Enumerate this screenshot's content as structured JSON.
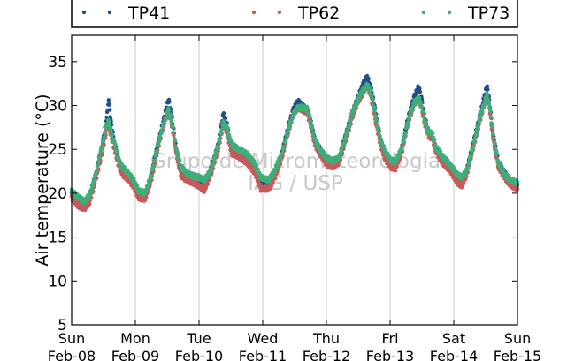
{
  "chart_data": {
    "type": "scatter",
    "title": "",
    "xlabel": "",
    "ylabel": "Air temperature (°C)",
    "ylim": [
      5,
      38
    ],
    "xlim_days": [
      "Feb-08",
      "Feb-15"
    ],
    "yticks": [
      "5",
      "10",
      "15",
      "20",
      "25",
      "30",
      "35"
    ],
    "xticks": [
      {
        "day": "Sun",
        "date": "Feb-08"
      },
      {
        "day": "Mon",
        "date": "Feb-09"
      },
      {
        "day": "Tue",
        "date": "Feb-10"
      },
      {
        "day": "Wed",
        "date": "Feb-11"
      },
      {
        "day": "Thu",
        "date": "Feb-12"
      },
      {
        "day": "Fri",
        "date": "Feb-13"
      },
      {
        "day": "Sat",
        "date": "Feb-14"
      },
      {
        "day": "Sun",
        "date": "Feb-15"
      }
    ],
    "grid": "vertical",
    "legend_placement": "top",
    "watermark": [
      "Grupo de Micrometeorologia",
      "IAG / USP"
    ],
    "series": [
      {
        "name": "TP41",
        "color": "#1f4e8c",
        "points": [
          [
            0.0,
            20.0
          ],
          [
            0.1,
            19.2
          ],
          [
            0.2,
            18.6
          ],
          [
            0.28,
            19.5
          ],
          [
            0.38,
            22.0
          ],
          [
            0.48,
            25.5
          ],
          [
            0.55,
            28.5
          ],
          [
            0.58,
            30.8
          ],
          [
            0.62,
            28.0
          ],
          [
            0.68,
            25.5
          ],
          [
            0.75,
            23.5
          ],
          [
            0.82,
            22.5
          ],
          [
            0.9,
            22.0
          ],
          [
            0.97,
            21.0
          ],
          [
            1.05,
            20.0
          ],
          [
            1.15,
            19.5
          ],
          [
            1.25,
            22.0
          ],
          [
            1.35,
            25.5
          ],
          [
            1.45,
            28.5
          ],
          [
            1.52,
            30.8
          ],
          [
            1.58,
            28.5
          ],
          [
            1.64,
            25.0
          ],
          [
            1.72,
            22.5
          ],
          [
            1.8,
            22.0
          ],
          [
            1.9,
            21.8
          ],
          [
            2.0,
            21.5
          ],
          [
            2.08,
            21.0
          ],
          [
            2.18,
            22.5
          ],
          [
            2.3,
            25.5
          ],
          [
            2.38,
            29.0
          ],
          [
            2.44,
            28.0
          ],
          [
            2.48,
            26.0
          ],
          [
            2.52,
            25.0
          ],
          [
            2.62,
            24.8
          ],
          [
            2.75,
            24.2
          ],
          [
            2.88,
            23.0
          ],
          [
            2.97,
            21.2
          ],
          [
            3.1,
            21.0
          ],
          [
            3.2,
            22.5
          ],
          [
            3.3,
            24.5
          ],
          [
            3.4,
            27.5
          ],
          [
            3.48,
            29.5
          ],
          [
            3.55,
            30.5
          ],
          [
            3.62,
            30.0
          ],
          [
            3.7,
            29.5
          ],
          [
            3.76,
            28.0
          ],
          [
            3.82,
            26.0
          ],
          [
            3.9,
            25.0
          ],
          [
            4.0,
            24.0
          ],
          [
            4.1,
            23.5
          ],
          [
            4.2,
            24.0
          ],
          [
            4.3,
            26.5
          ],
          [
            4.4,
            29.0
          ],
          [
            4.5,
            31.0
          ],
          [
            4.58,
            32.5
          ],
          [
            4.64,
            33.3
          ],
          [
            4.7,
            32.0
          ],
          [
            4.78,
            29.0
          ],
          [
            4.85,
            26.0
          ],
          [
            4.92,
            24.5
          ],
          [
            5.0,
            23.5
          ],
          [
            5.08,
            23.2
          ],
          [
            5.18,
            25.0
          ],
          [
            5.28,
            28.5
          ],
          [
            5.38,
            31.0
          ],
          [
            5.45,
            32.2
          ],
          [
            5.5,
            30.5
          ],
          [
            5.55,
            28.5
          ],
          [
            5.6,
            27.0
          ],
          [
            5.66,
            26.5
          ],
          [
            5.72,
            25.0
          ],
          [
            5.82,
            24.0
          ],
          [
            5.95,
            23.0
          ],
          [
            6.05,
            22.0
          ],
          [
            6.12,
            21.2
          ],
          [
            6.2,
            22.5
          ],
          [
            6.3,
            25.5
          ],
          [
            6.4,
            28.5
          ],
          [
            6.48,
            31.0
          ],
          [
            6.52,
            32.3
          ],
          [
            6.56,
            30.5
          ],
          [
            6.62,
            26.5
          ],
          [
            6.7,
            23.5
          ],
          [
            6.78,
            22.5
          ],
          [
            6.88,
            21.5
          ],
          [
            7.0,
            21.0
          ]
        ]
      },
      {
        "name": "TP62",
        "color": "#c8595a",
        "points": [
          [
            0.0,
            19.5
          ],
          [
            0.1,
            18.6
          ],
          [
            0.2,
            18.2
          ],
          [
            0.28,
            19.0
          ],
          [
            0.38,
            21.5
          ],
          [
            0.48,
            24.8
          ],
          [
            0.55,
            27.3
          ],
          [
            0.58,
            27.8
          ],
          [
            0.62,
            26.5
          ],
          [
            0.68,
            24.8
          ],
          [
            0.75,
            22.8
          ],
          [
            0.82,
            22.0
          ],
          [
            0.9,
            21.5
          ],
          [
            0.97,
            20.8
          ],
          [
            1.05,
            19.5
          ],
          [
            1.15,
            19.3
          ],
          [
            1.25,
            21.5
          ],
          [
            1.35,
            25.0
          ],
          [
            1.45,
            28.0
          ],
          [
            1.52,
            29.5
          ],
          [
            1.58,
            27.5
          ],
          [
            1.64,
            24.5
          ],
          [
            1.72,
            22.0
          ],
          [
            1.8,
            21.5
          ],
          [
            1.9,
            21.2
          ],
          [
            2.0,
            20.8
          ],
          [
            2.08,
            20.3
          ],
          [
            2.18,
            22.0
          ],
          [
            2.3,
            25.0
          ],
          [
            2.38,
            27.8
          ],
          [
            2.44,
            27.0
          ],
          [
            2.48,
            25.5
          ],
          [
            2.52,
            24.5
          ],
          [
            2.62,
            24.2
          ],
          [
            2.75,
            23.5
          ],
          [
            2.88,
            22.3
          ],
          [
            2.97,
            20.5
          ],
          [
            3.1,
            20.5
          ],
          [
            3.2,
            22.0
          ],
          [
            3.3,
            24.0
          ],
          [
            3.4,
            27.0
          ],
          [
            3.48,
            29.0
          ],
          [
            3.55,
            29.8
          ],
          [
            3.62,
            29.5
          ],
          [
            3.7,
            29.2
          ],
          [
            3.76,
            27.5
          ],
          [
            3.82,
            25.5
          ],
          [
            3.9,
            24.5
          ],
          [
            4.0,
            23.3
          ],
          [
            4.1,
            23.0
          ],
          [
            4.2,
            23.5
          ],
          [
            4.3,
            26.0
          ],
          [
            4.4,
            28.5
          ],
          [
            4.5,
            30.5
          ],
          [
            4.58,
            31.5
          ],
          [
            4.64,
            32.3
          ],
          [
            4.7,
            31.0
          ],
          [
            4.78,
            28.0
          ],
          [
            4.85,
            25.5
          ],
          [
            4.92,
            24.0
          ],
          [
            5.0,
            23.0
          ],
          [
            5.08,
            22.8
          ],
          [
            5.18,
            24.5
          ],
          [
            5.28,
            28.0
          ],
          [
            5.38,
            30.2
          ],
          [
            5.45,
            30.8
          ],
          [
            5.5,
            29.5
          ],
          [
            5.55,
            27.8
          ],
          [
            5.6,
            26.5
          ],
          [
            5.66,
            26.3
          ],
          [
            5.72,
            24.8
          ],
          [
            5.82,
            23.5
          ],
          [
            5.95,
            22.5
          ],
          [
            6.05,
            21.3
          ],
          [
            6.12,
            20.8
          ],
          [
            6.2,
            22.0
          ],
          [
            6.3,
            25.0
          ],
          [
            6.4,
            28.0
          ],
          [
            6.48,
            30.2
          ],
          [
            6.52,
            31.2
          ],
          [
            6.56,
            29.8
          ],
          [
            6.62,
            26.0
          ],
          [
            6.7,
            23.0
          ],
          [
            6.78,
            22.0
          ],
          [
            6.88,
            21.0
          ],
          [
            7.0,
            20.5
          ]
        ]
      },
      {
        "name": "TP73",
        "color": "#3dae7a",
        "points": [
          [
            0.0,
            20.2
          ],
          [
            0.1,
            19.6
          ],
          [
            0.2,
            19.0
          ],
          [
            0.28,
            19.8
          ],
          [
            0.38,
            22.2
          ],
          [
            0.48,
            25.5
          ],
          [
            0.55,
            27.8
          ],
          [
            0.58,
            28.2
          ],
          [
            0.62,
            27.0
          ],
          [
            0.68,
            25.5
          ],
          [
            0.75,
            23.5
          ],
          [
            0.82,
            22.8
          ],
          [
            0.9,
            22.2
          ],
          [
            0.97,
            21.5
          ],
          [
            1.05,
            20.3
          ],
          [
            1.15,
            20.0
          ],
          [
            1.25,
            22.0
          ],
          [
            1.35,
            25.5
          ],
          [
            1.45,
            28.0
          ],
          [
            1.52,
            29.5
          ],
          [
            1.58,
            28.0
          ],
          [
            1.64,
            25.0
          ],
          [
            1.72,
            23.0
          ],
          [
            1.8,
            22.3
          ],
          [
            1.9,
            22.0
          ],
          [
            2.0,
            21.8
          ],
          [
            2.08,
            21.5
          ],
          [
            2.18,
            22.5
          ],
          [
            2.3,
            25.5
          ],
          [
            2.38,
            28.0
          ],
          [
            2.44,
            27.5
          ],
          [
            2.48,
            26.2
          ],
          [
            2.52,
            25.5
          ],
          [
            2.62,
            25.0
          ],
          [
            2.75,
            24.5
          ],
          [
            2.88,
            23.3
          ],
          [
            2.97,
            21.8
          ],
          [
            3.1,
            21.5
          ],
          [
            3.2,
            22.8
          ],
          [
            3.3,
            24.5
          ],
          [
            3.4,
            27.2
          ],
          [
            3.48,
            29.0
          ],
          [
            3.55,
            29.7
          ],
          [
            3.62,
            29.8
          ],
          [
            3.7,
            29.6
          ],
          [
            3.76,
            28.0
          ],
          [
            3.82,
            26.0
          ],
          [
            3.9,
            25.0
          ],
          [
            4.0,
            24.0
          ],
          [
            4.1,
            23.7
          ],
          [
            4.2,
            24.0
          ],
          [
            4.3,
            26.5
          ],
          [
            4.4,
            29.0
          ],
          [
            4.5,
            30.8
          ],
          [
            4.58,
            31.8
          ],
          [
            4.64,
            32.3
          ],
          [
            4.7,
            31.5
          ],
          [
            4.78,
            28.5
          ],
          [
            4.85,
            26.0
          ],
          [
            4.92,
            24.8
          ],
          [
            5.0,
            23.8
          ],
          [
            5.08,
            23.6
          ],
          [
            5.18,
            25.0
          ],
          [
            5.28,
            28.2
          ],
          [
            5.38,
            30.3
          ],
          [
            5.45,
            30.8
          ],
          [
            5.5,
            29.8
          ],
          [
            5.55,
            28.0
          ],
          [
            5.6,
            27.0
          ],
          [
            5.66,
            26.8
          ],
          [
            5.72,
            25.3
          ],
          [
            5.82,
            24.2
          ],
          [
            5.95,
            23.2
          ],
          [
            6.05,
            22.2
          ],
          [
            6.12,
            21.8
          ],
          [
            6.2,
            22.5
          ],
          [
            6.3,
            25.2
          ],
          [
            6.4,
            28.2
          ],
          [
            6.48,
            30.3
          ],
          [
            6.52,
            31.2
          ],
          [
            6.56,
            30.0
          ],
          [
            6.62,
            26.5
          ],
          [
            6.7,
            23.5
          ],
          [
            6.78,
            22.3
          ],
          [
            6.88,
            21.5
          ],
          [
            7.0,
            21.2
          ]
        ]
      }
    ]
  }
}
